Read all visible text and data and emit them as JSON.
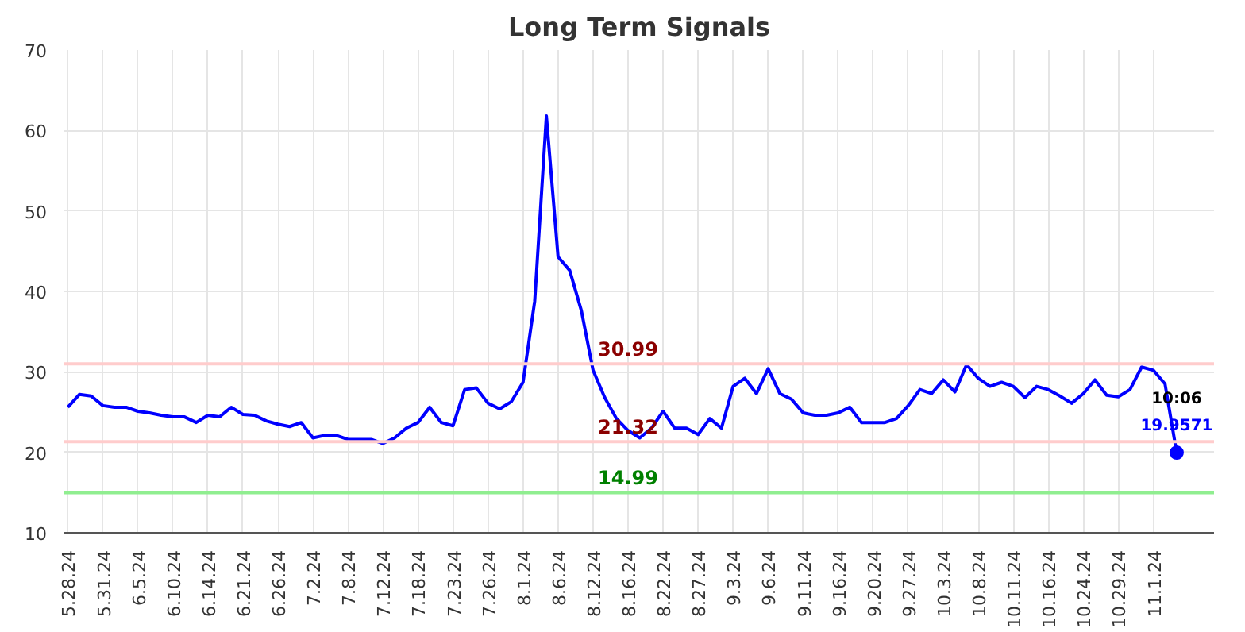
{
  "chart_data": {
    "type": "line",
    "title": "Long Term Signals",
    "categories": [
      "5.28.24",
      null,
      null,
      "5.31.24",
      null,
      null,
      "6.5.24",
      null,
      null,
      "6.10.24",
      null,
      null,
      "6.14.24",
      null,
      null,
      "6.21.24",
      null,
      null,
      "6.26.24",
      null,
      null,
      "7.2.24",
      null,
      null,
      "7.8.24",
      null,
      null,
      "7.12.24",
      null,
      null,
      "7.18.24",
      null,
      null,
      "7.23.24",
      null,
      null,
      "7.26.24",
      null,
      null,
      "8.1.24",
      null,
      null,
      "8.6.24",
      null,
      null,
      "8.12.24",
      null,
      null,
      "8.16.24",
      null,
      null,
      "8.22.24",
      null,
      null,
      "8.27.24",
      null,
      null,
      "9.3.24",
      null,
      null,
      "9.6.24",
      null,
      null,
      "9.11.24",
      null,
      null,
      "9.16.24",
      null,
      null,
      "9.20.24",
      null,
      null,
      "9.27.24",
      null,
      null,
      "10.3.24",
      null,
      null,
      "10.8.24",
      null,
      null,
      "10.11.24",
      null,
      null,
      "10.16.24",
      null,
      null,
      "10.24.24",
      null,
      null,
      "10.29.24",
      null,
      null,
      "11.1.24",
      null,
      null
    ],
    "series": [
      {
        "color": "#0000ff",
        "values": [
          25.6,
          27.2,
          27.0,
          25.8,
          25.6,
          25.6,
          25.1,
          24.9,
          24.6,
          24.4,
          24.4,
          23.7,
          24.6,
          24.4,
          25.6,
          24.7,
          24.6,
          23.9,
          23.5,
          23.2,
          23.7,
          21.8,
          22.1,
          22.1,
          21.6,
          21.6,
          21.6,
          21.1,
          21.8,
          23.0,
          23.7,
          25.6,
          23.7,
          23.3,
          27.8,
          28.0,
          26.1,
          25.4,
          26.3,
          28.7,
          38.8,
          61.8,
          44.3,
          42.6,
          37.6,
          30.2,
          26.8,
          24.2,
          22.7,
          21.8,
          23.0,
          25.1,
          23.0,
          23.0,
          22.2,
          24.2,
          23.0,
          28.2,
          29.2,
          27.3,
          30.4,
          27.3,
          26.6,
          24.9,
          24.6,
          24.6,
          24.9,
          25.6,
          23.7,
          23.7,
          23.7,
          24.2,
          25.8,
          27.8,
          27.3,
          29.0,
          27.5,
          30.9,
          29.2,
          28.2,
          28.7,
          28.2,
          26.8,
          28.2,
          27.8,
          27.0,
          26.1,
          27.3,
          29.0,
          27.1,
          26.9,
          27.8,
          30.6,
          30.2,
          28.5,
          19.9571
        ]
      },
      {
        "type": "scatter",
        "color": "#0000ff",
        "marker": "circle",
        "values": [
          null,
          null,
          null,
          null,
          null,
          null,
          null,
          null,
          null,
          null,
          null,
          null,
          null,
          null,
          null,
          null,
          null,
          null,
          null,
          null,
          null,
          null,
          null,
          null,
          null,
          null,
          null,
          null,
          null,
          null,
          null,
          null,
          null,
          null,
          null,
          null,
          null,
          null,
          null,
          null,
          null,
          null,
          null,
          null,
          null,
          null,
          null,
          null,
          null,
          null,
          null,
          null,
          null,
          null,
          null,
          null,
          null,
          null,
          null,
          null,
          null,
          null,
          null,
          null,
          null,
          null,
          null,
          null,
          null,
          null,
          null,
          null,
          null,
          null,
          null,
          null,
          null,
          null,
          null,
          null,
          null,
          null,
          null,
          null,
          null,
          null,
          null,
          null,
          null,
          null,
          null,
          null,
          null,
          null,
          null,
          19.9571
        ]
      }
    ],
    "ylim": [
      10,
      70
    ],
    "yticks": [
      10,
      20,
      30,
      40,
      50,
      60,
      70
    ],
    "grid": true,
    "marker": "none",
    "line_style": "solid",
    "ref_lines": [
      {
        "axis": "y",
        "value": 30.99,
        "label": "30.99",
        "color": "#ffcccc"
      },
      {
        "axis": "y",
        "value": 21.32,
        "label": "21.32",
        "color": "#ffcccc"
      },
      {
        "axis": "y",
        "value": 14.99,
        "label": "14.99",
        "color": "#90ee90"
      }
    ],
    "annotations": [
      "10:06",
      "19.9571"
    ]
  }
}
